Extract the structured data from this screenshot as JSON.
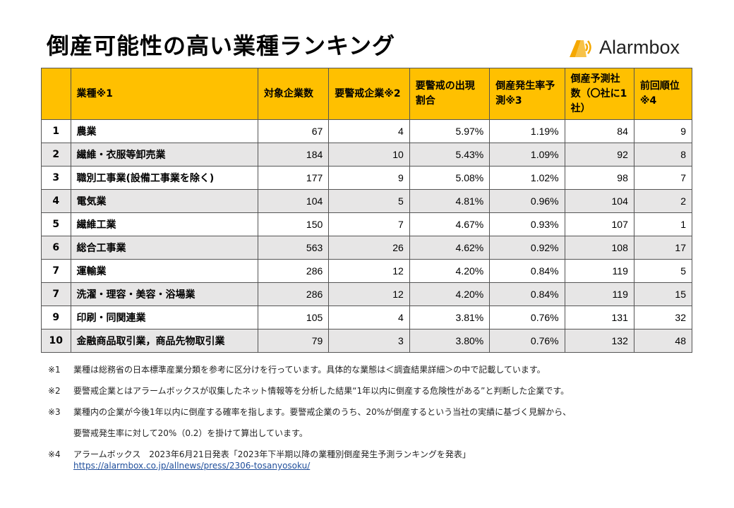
{
  "title": "倒産可能性の高い業種ランキング",
  "brand": {
    "name": "Alarmbox",
    "accent_color": "#f5a800",
    "icon": "alarm-bell-icon"
  },
  "table": {
    "headers": [
      "",
      "業種※1",
      "対象企業数",
      "要警戒企業※2",
      "要警戒の出現割合",
      "倒産発生率予測※3",
      "倒産予測社数（〇社に1社）",
      "前回順位※4"
    ],
    "rows": [
      {
        "rank": "1",
        "industry": "農業",
        "companies": "67",
        "watch": "4",
        "ratio": "5.97%",
        "rate": "1.19%",
        "one_in": "84",
        "prev": "9"
      },
      {
        "rank": "2",
        "industry": "繊維・衣服等卸売業",
        "companies": "184",
        "watch": "10",
        "ratio": "5.43%",
        "rate": "1.09%",
        "one_in": "92",
        "prev": "8"
      },
      {
        "rank": "3",
        "industry": "職別工事業(設備工事業を除く)",
        "companies": "177",
        "watch": "9",
        "ratio": "5.08%",
        "rate": "1.02%",
        "one_in": "98",
        "prev": "7"
      },
      {
        "rank": "4",
        "industry": "電気業",
        "companies": "104",
        "watch": "5",
        "ratio": "4.81%",
        "rate": "0.96%",
        "one_in": "104",
        "prev": "2"
      },
      {
        "rank": "5",
        "industry": "繊維工業",
        "companies": "150",
        "watch": "7",
        "ratio": "4.67%",
        "rate": "0.93%",
        "one_in": "107",
        "prev": "1"
      },
      {
        "rank": "6",
        "industry": "総合工事業",
        "companies": "563",
        "watch": "26",
        "ratio": "4.62%",
        "rate": "0.92%",
        "one_in": "108",
        "prev": "17"
      },
      {
        "rank": "7",
        "industry": "運輸業",
        "companies": "286",
        "watch": "12",
        "ratio": "4.20%",
        "rate": "0.84%",
        "one_in": "119",
        "prev": "5"
      },
      {
        "rank": "7",
        "industry": "洗濯・理容・美容・浴場業",
        "companies": "286",
        "watch": "12",
        "ratio": "4.20%",
        "rate": "0.84%",
        "one_in": "119",
        "prev": "15"
      },
      {
        "rank": "9",
        "industry": "印刷・同関連業",
        "companies": "105",
        "watch": "4",
        "ratio": "3.81%",
        "rate": "0.76%",
        "one_in": "131",
        "prev": "32"
      },
      {
        "rank": "10",
        "industry": "金融商品取引業，商品先物取引業",
        "companies": "79",
        "watch": "3",
        "ratio": "3.80%",
        "rate": "0.76%",
        "one_in": "132",
        "prev": "48"
      }
    ]
  },
  "notes": {
    "n1": {
      "mark": "※1",
      "text": "業種は総務省の日本標準産業分類を参考に区分けを行っています。具体的な業態は＜調査結果詳細＞の中で記載しています。"
    },
    "n2": {
      "mark": "※2",
      "text": "要警戒企業とはアラームボックスが収集したネット情報等を分析した結果“1年以内に倒産する危険性がある”と判断した企業です。"
    },
    "n3": {
      "mark": "※3",
      "text": "業種内の企業が今後1年以内に倒産する確率を指します。要警戒企業のうち、20%が倒産するという当社の実績に基づく見解から、",
      "text2": "要警戒発生率に対して20%（0.2）を掛けて算出しています。"
    },
    "n4": {
      "mark": "※4",
      "text": "アラームボックス　2023年6月21日発表「2023年下半期以降の業種別倒産発生予測ランキングを発表」",
      "link": "https://alarmbox.co.jp/allnews/press/2306-tosanyosoku/"
    }
  }
}
